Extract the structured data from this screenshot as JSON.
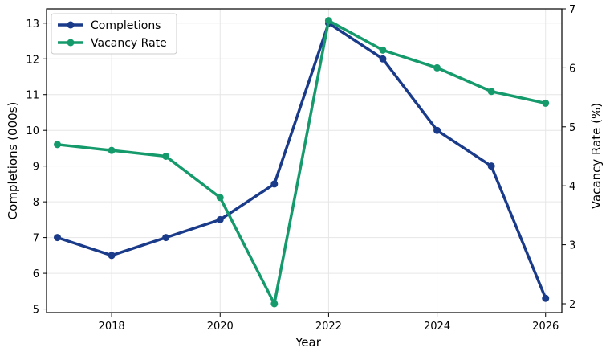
{
  "chart_data": {
    "type": "line",
    "x": [
      2017,
      2018,
      2019,
      2020,
      2021,
      2022,
      2023,
      2024,
      2025,
      2026
    ],
    "x_ticks": [
      2018,
      2020,
      2022,
      2024,
      2026
    ],
    "xlabel": "Year",
    "xlim": [
      2016.8,
      2026.3
    ],
    "grid": true,
    "legend_position": "top-left",
    "y_left": {
      "label": "Completions (000s)",
      "lim": [
        4.9,
        13.4
      ],
      "ticks": [
        5,
        6,
        7,
        8,
        9,
        10,
        11,
        12,
        13
      ]
    },
    "y_right": {
      "label": "Vacancy Rate (%)",
      "lim": [
        1.85,
        7.0
      ],
      "ticks": [
        2,
        3,
        4,
        5,
        6,
        7
      ]
    },
    "series": [
      {
        "name": "Completions",
        "axis": "left",
        "color": "#1a3a8a",
        "values": [
          7.0,
          6.5,
          7.0,
          7.5,
          8.5,
          13.0,
          12.0,
          10.0,
          9.0,
          5.3
        ]
      },
      {
        "name": "Vacancy Rate",
        "axis": "right",
        "color": "#159a6c",
        "values": [
          4.7,
          4.6,
          4.5,
          3.8,
          2.0,
          6.8,
          6.3,
          6.0,
          5.6,
          5.4
        ]
      }
    ]
  }
}
